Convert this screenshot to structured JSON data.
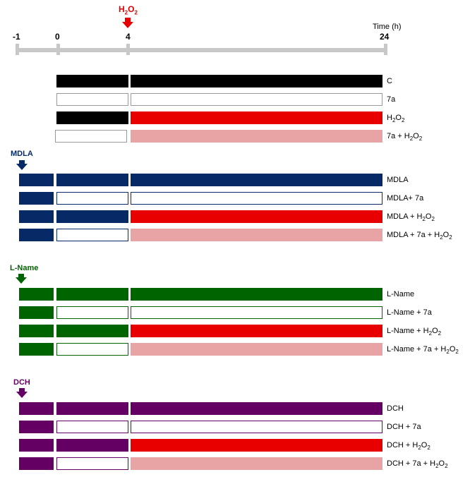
{
  "timeline": {
    "unit_label": "Time (h)",
    "ticks": [
      {
        "label": "-1",
        "t": -1
      },
      {
        "label": "0",
        "t": 0
      },
      {
        "label": "4",
        "t": 4
      },
      {
        "label": "24",
        "t": 24
      }
    ],
    "h2o2_marker": {
      "label_main": "H",
      "label_sub1": "2",
      "label_mid": "O",
      "label_sub2": "2",
      "t": 4
    }
  },
  "colors": {
    "black": "#000000",
    "white": "#ffffff",
    "red": "#e80000",
    "pink": "#e8a4a4",
    "navy": "#052a66",
    "green": "#006400",
    "purple": "#640064",
    "axis": "#c8c8c8"
  },
  "groups": [
    {
      "key": "control",
      "label": "",
      "rows": [
        {
          "label": "C"
        },
        {
          "label": "7a"
        },
        {
          "label": "H",
          "sub": "2",
          "mid": "O",
          "sub2": "2"
        },
        {
          "label": "7a + H",
          "sub": "2",
          "mid": "O",
          "sub2": "2"
        }
      ]
    },
    {
      "key": "mdla",
      "label": "MDLA",
      "rows": [
        {
          "label": "MDLA"
        },
        {
          "label": "MDLA+ 7a"
        },
        {
          "label": "MDLA + H",
          "sub": "2",
          "mid": "O",
          "sub2": "2"
        },
        {
          "label": "MDLA + 7a + H",
          "sub": "2",
          "mid": "O",
          "sub2": "2"
        }
      ]
    },
    {
      "key": "lname",
      "label": "L-Name",
      "rows": [
        {
          "label": "L-Name"
        },
        {
          "label": "L-Name + 7a"
        },
        {
          "label": "L-Name + H",
          "sub": "2",
          "mid": "O",
          "sub2": "2"
        },
        {
          "label": "L-Name + 7a + H",
          "sub": "2",
          "mid": "O",
          "sub2": "2"
        }
      ]
    },
    {
      "key": "dch",
      "label": "DCH",
      "rows": [
        {
          "label": "DCH"
        },
        {
          "label": "DCH + 7a"
        },
        {
          "label": "DCH + H",
          "sub": "2",
          "mid": "O",
          "sub2": "2"
        },
        {
          "label": "DCH + 7a + H",
          "sub": "2",
          "mid": "O",
          "sub2": "2"
        }
      ]
    }
  ]
}
